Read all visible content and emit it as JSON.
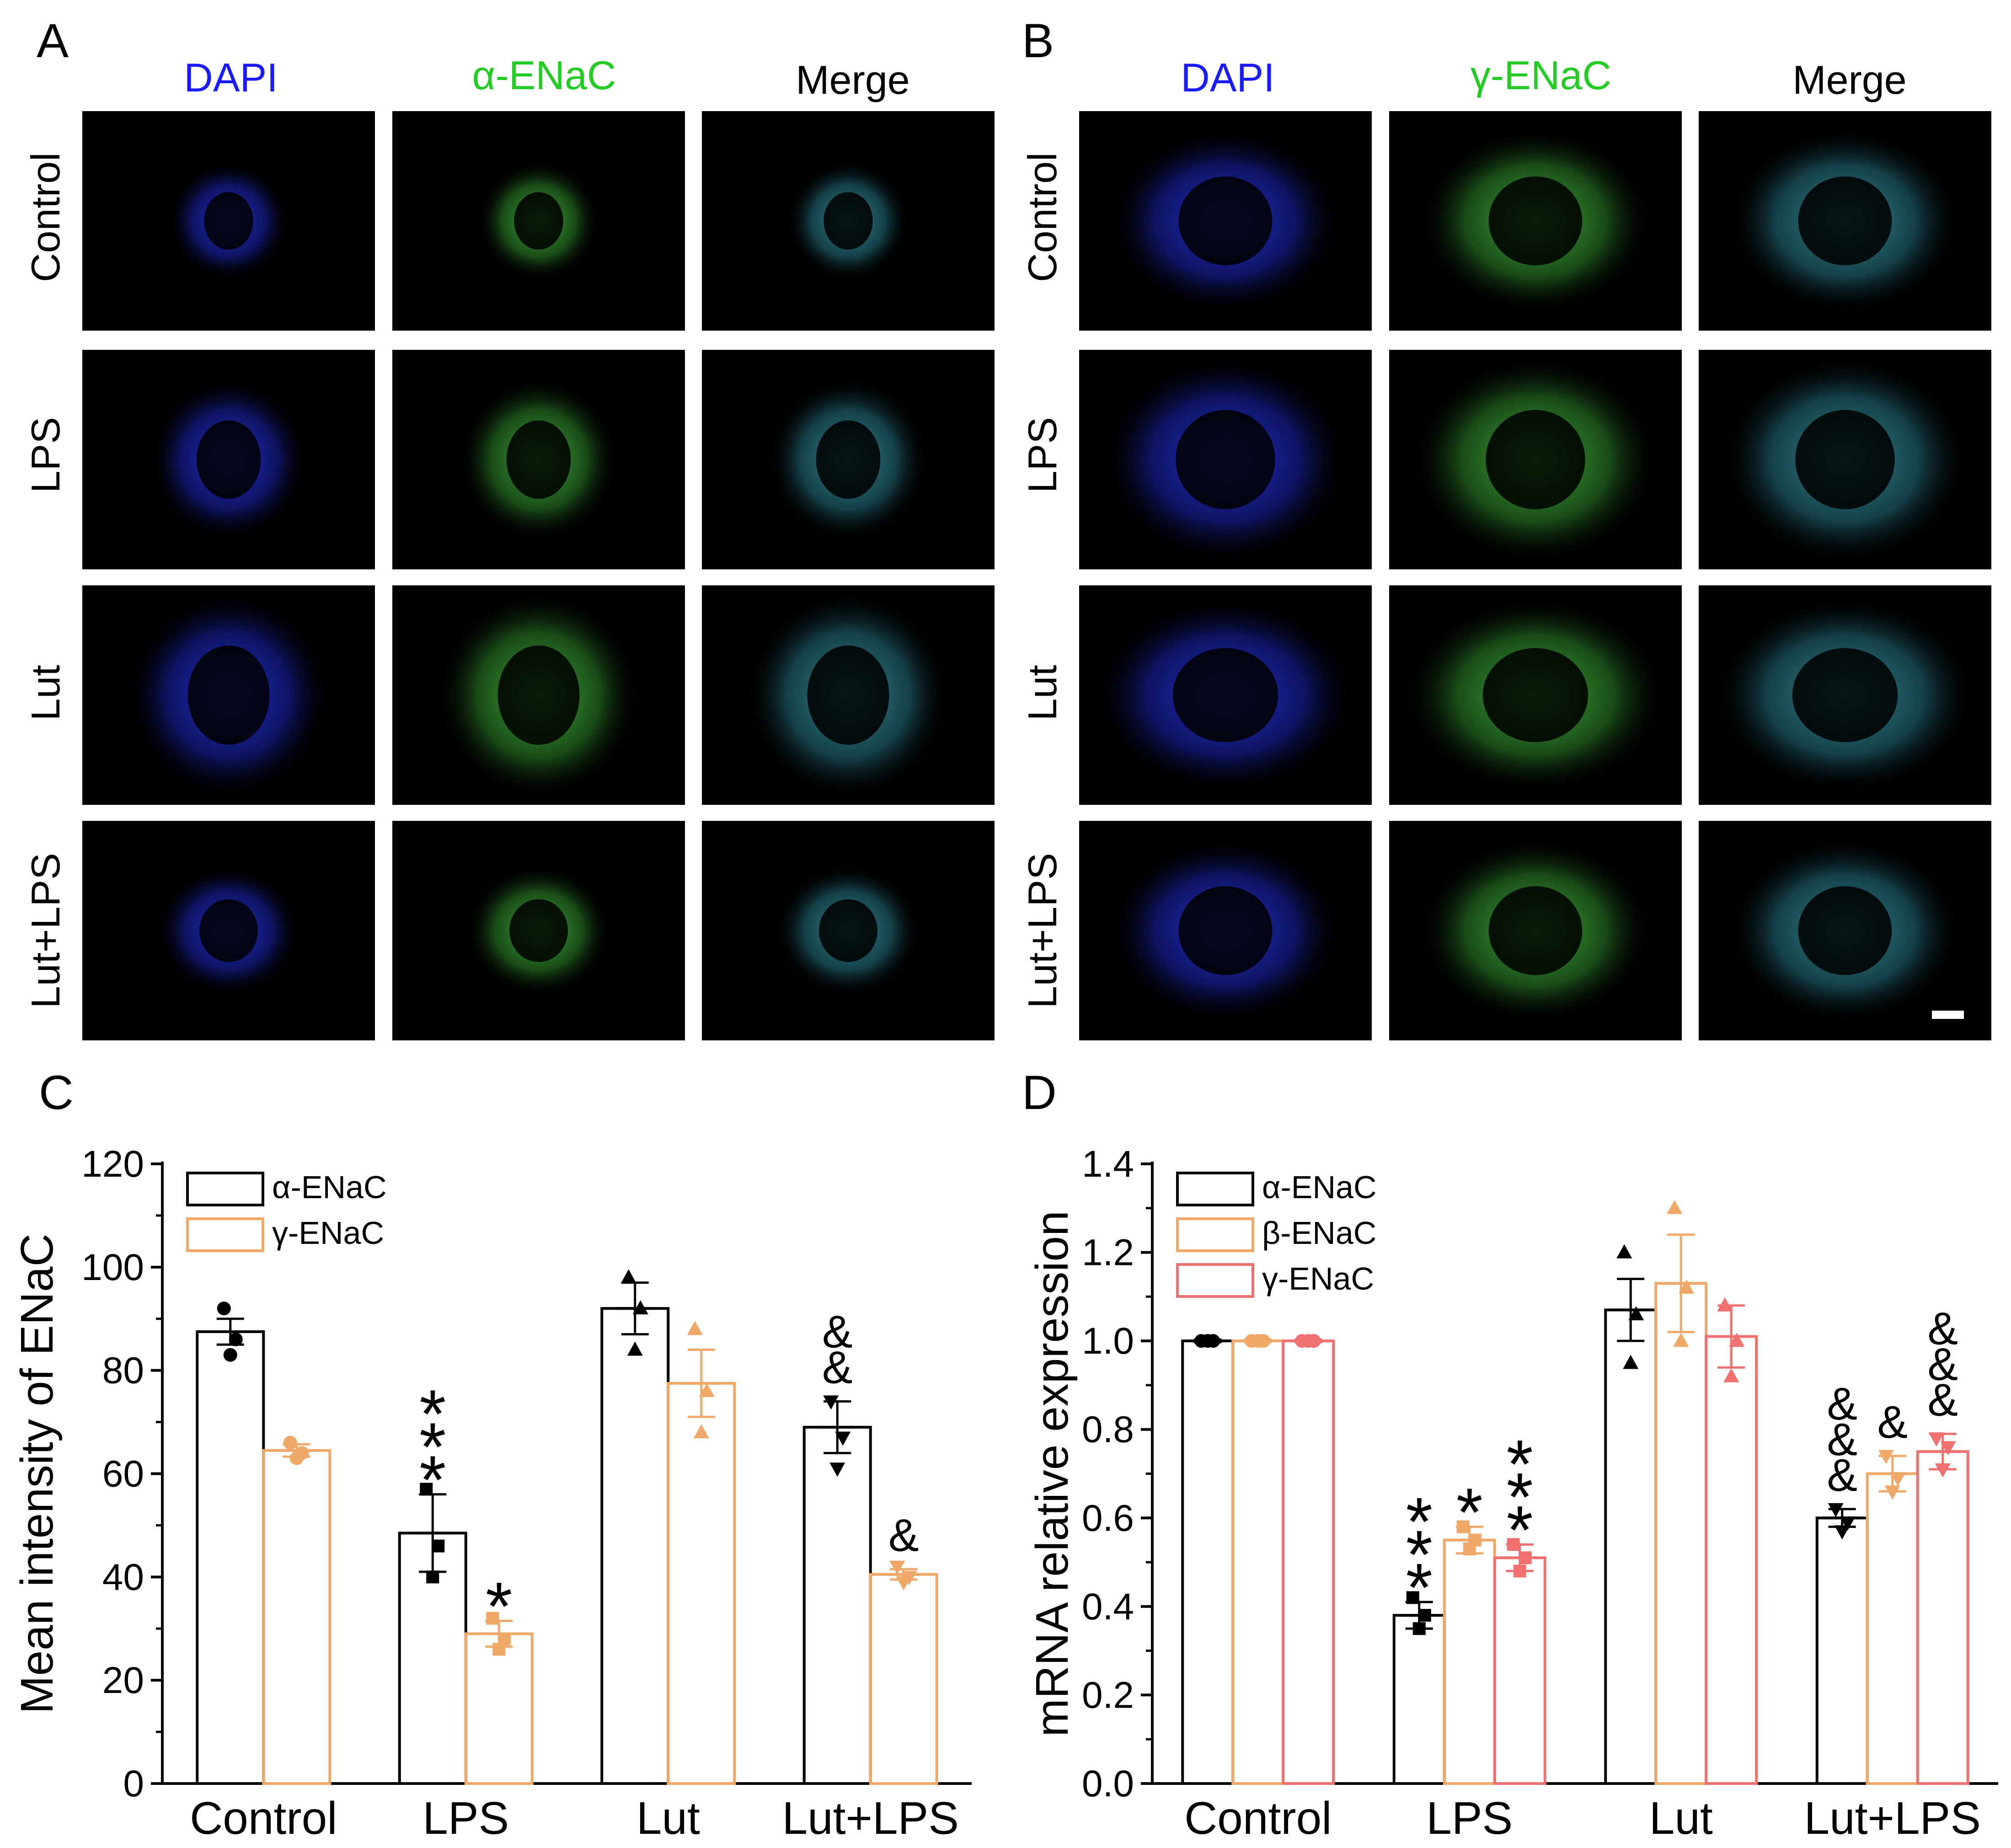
{
  "figure": {
    "panel_A": {
      "letter": "A",
      "column_headers": [
        "DAPI",
        "α-ENaC",
        "Merge"
      ],
      "row_labels": [
        "Control",
        "LPS",
        "Lut",
        "Lut+LPS"
      ]
    },
    "panel_B": {
      "letter": "B",
      "column_headers": [
        "DAPI",
        "γ-ENaC",
        "Merge"
      ],
      "row_labels": [
        "Control",
        "LPS",
        "Lut",
        "Lut+LPS"
      ]
    },
    "header_colors": {
      "DAPI": "#1a1aff",
      "green": "#22cc22",
      "merge": "#000000"
    },
    "fluorescence_colors": {
      "dapi": "#1c2cff",
      "enac": "#3fb83a",
      "background": "#000000"
    }
  },
  "chart_data": [
    {
      "panel": "C",
      "type": "bar",
      "ylabel": "Mean intensity of ENaC",
      "xlabel": "",
      "ylim": [
        0,
        120
      ],
      "yticks": [
        0,
        20,
        40,
        60,
        80,
        100,
        120
      ],
      "categories": [
        "Control",
        "LPS",
        "Lut",
        "Lut+LPS"
      ],
      "legend_position": "top-left",
      "series": [
        {
          "name": "α-ENaC",
          "color": "#000000",
          "values": [
            87.5,
            48.5,
            92,
            69
          ],
          "errors": [
            2.5,
            7.5,
            5,
            5
          ],
          "points": [
            [
              92,
              86,
              83
            ],
            [
              57,
              46,
              40
            ],
            [
              98,
              92,
              84
            ],
            [
              74,
              67,
              61
            ]
          ],
          "annotations": [
            "",
            "***",
            "",
            "&&"
          ]
        },
        {
          "name": "γ-ENaC",
          "color": "#f0a868",
          "values": [
            64.5,
            29,
            77.5,
            40.5
          ],
          "errors": [
            1.2,
            2.5,
            6.5,
            1
          ],
          "points": [
            [
              66,
              64,
              63
            ],
            [
              32,
              28,
              26
            ],
            [
              88,
              76,
              68
            ],
            [
              42,
              40,
              39
            ]
          ],
          "annotations": [
            "",
            "*",
            "",
            "&"
          ]
        }
      ]
    },
    {
      "panel": "D",
      "type": "bar",
      "ylabel": "mRNA relative expression",
      "xlabel": "",
      "ylim": [
        0,
        1.4
      ],
      "yticks": [
        "0.0",
        "0.2",
        "0.4",
        "0.6",
        "0.8",
        "1.0",
        "1.2",
        "1.4"
      ],
      "categories": [
        "Control",
        "LPS",
        "Lut",
        "Lut+LPS"
      ],
      "legend_position": "top-left",
      "series": [
        {
          "name": "α-ENaC",
          "color": "#000000",
          "values": [
            1.0,
            0.38,
            1.07,
            0.6
          ],
          "errors": [
            0.003,
            0.03,
            0.07,
            0.02
          ],
          "points": [
            [
              1.0,
              1.0,
              1.0
            ],
            [
              0.42,
              0.38,
              0.35
            ],
            [
              1.2,
              1.06,
              0.95
            ],
            [
              0.62,
              0.59,
              0.57
            ]
          ],
          "annotations": [
            "",
            "***",
            "",
            "&&&"
          ]
        },
        {
          "name": "β-ENaC",
          "color": "#f0a868",
          "values": [
            1.0,
            0.55,
            1.13,
            0.7
          ],
          "errors": [
            0.003,
            0.03,
            0.11,
            0.04
          ],
          "points": [
            [
              1.0,
              1.0,
              1.0
            ],
            [
              0.58,
              0.55,
              0.53
            ],
            [
              1.3,
              1.12,
              1.0
            ],
            [
              0.74,
              0.69,
              0.66
            ]
          ],
          "annotations": [
            "",
            "*",
            "",
            "&"
          ]
        },
        {
          "name": "γ-ENaC",
          "color": "#f07070",
          "values": [
            1.0,
            0.51,
            1.01,
            0.75
          ],
          "errors": [
            0.003,
            0.03,
            0.07,
            0.04
          ],
          "points": [
            [
              1.0,
              1.0,
              1.0
            ],
            [
              0.54,
              0.51,
              0.48
            ],
            [
              1.08,
              1.0,
              0.92
            ],
            [
              0.78,
              0.76,
              0.71
            ]
          ],
          "annotations": [
            "",
            "***",
            "",
            "&&&"
          ]
        }
      ]
    }
  ]
}
